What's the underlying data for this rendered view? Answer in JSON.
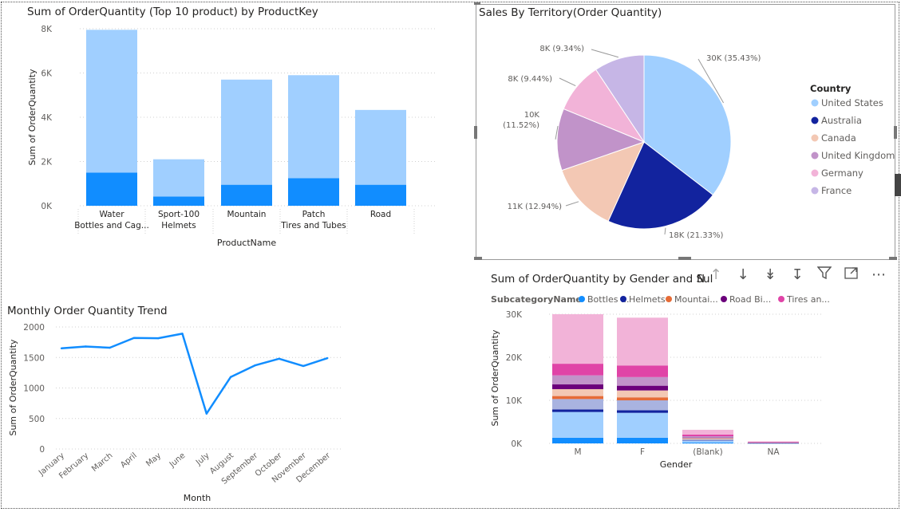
{
  "colors": {
    "light_blue": "#a0cfff",
    "blue": "#118dff",
    "navy": "#12239e",
    "peach": "#f3c8b4",
    "purple": "#c193c9",
    "pink": "#f2b3d8",
    "lavender": "#c6b6e6",
    "line": "#118dff",
    "orange": "#e66c37",
    "dark_purple": "#6b007b",
    "magenta": "#e044a7"
  },
  "header_icons": [
    "arrow-up-icon",
    "arrow-down-icon",
    "double-arrow-down-icon",
    "expand-down-icon",
    "filter-icon",
    "focus-mode-icon",
    "more-options-icon"
  ],
  "chart_data": [
    {
      "type": "bar",
      "title": "Sum of OrderQuantity (Top 10 product) by ProductKey",
      "xlabel": "ProductName",
      "ylabel": "Sum of OrderQuantity",
      "ylim": [
        0,
        8000
      ],
      "yticks": [
        "0K",
        "2K",
        "4K",
        "6K",
        "8K"
      ],
      "categories": [
        [
          "Water",
          "Bottles and Cag..."
        ],
        [
          "Sport-100",
          "Helmets"
        ],
        [
          "Mountain",
          ""
        ],
        [
          "Patch",
          "Tires and Tubes"
        ],
        [
          "Road",
          ""
        ]
      ],
      "series": [
        {
          "values": [
            1500,
            420,
            950,
            1250,
            950
          ]
        },
        {
          "values": [
            6450,
            1680,
            4750,
            4650,
            3380
          ]
        }
      ],
      "grid": true
    },
    {
      "type": "pie",
      "title": "Sales By Territory(Order Quantity)",
      "legend_title": "Country",
      "legend_position": "right",
      "slices": [
        {
          "name": "United States",
          "value": 35.43,
          "label": "30K (35.43%)"
        },
        {
          "name": "Australia",
          "value": 21.33,
          "label": "18K (21.33%)"
        },
        {
          "name": "Canada",
          "value": 12.94,
          "label": "11K (12.94%)"
        },
        {
          "name": "United Kingdom",
          "value": 11.52,
          "label": "10K",
          "label2": "(11.52%)"
        },
        {
          "name": "Germany",
          "value": 9.44,
          "label": "8K (9.44%)"
        },
        {
          "name": "France",
          "value": 9.34,
          "label": "8K (9.34%)"
        }
      ]
    },
    {
      "type": "line",
      "title": "Monthly Order Quantity Trend",
      "xlabel": "Month",
      "ylabel": "Sum of OrderQuantity",
      "ylim": [
        0,
        2000
      ],
      "yticks": [
        "0",
        "500",
        "1000",
        "1500",
        "2000"
      ],
      "x": [
        "January",
        "February",
        "March",
        "April",
        "May",
        "June",
        "July",
        "August",
        "September",
        "October",
        "November",
        "December"
      ],
      "values": [
        1650,
        1680,
        1660,
        1820,
        1815,
        1890,
        580,
        1180,
        1370,
        1480,
        1360,
        1490
      ],
      "grid": true
    },
    {
      "type": "bar",
      "title": "Sum of OrderQuantity by Gender and Sul",
      "title_tail": "N",
      "xlabel": "Gender",
      "ylabel": "Sum of OrderQuantity",
      "ylim": [
        0,
        30000
      ],
      "yticks": [
        "0K",
        "10K",
        "20K",
        "30K"
      ],
      "legend_title": "SubcategoryName",
      "legend": [
        {
          "name": "Bottles ...",
          "color": "#118dff"
        },
        {
          "name": "Helmets",
          "color": "#12239e"
        },
        {
          "name": "Mountai...",
          "color": "#e66c37"
        },
        {
          "name": "Road Bi...",
          "color": "#6b007b"
        },
        {
          "name": "Tires an...",
          "color": "#e044a7"
        }
      ],
      "categories": [
        "M",
        "F",
        "(Blank)",
        "NA"
      ],
      "series": [
        {
          "color": "#118dff",
          "values": [
            1300,
            1300,
            200,
            40
          ]
        },
        {
          "color": "#a0cfff",
          "values": [
            6000,
            5800,
            400,
            60
          ]
        },
        {
          "color": "#12239e",
          "values": [
            600,
            600,
            80,
            10
          ]
        },
        {
          "color": "#a9b3e0",
          "values": [
            2400,
            2300,
            300,
            40
          ]
        },
        {
          "color": "#e66c37",
          "values": [
            700,
            700,
            80,
            10
          ]
        },
        {
          "color": "#f3c8b4",
          "values": [
            1600,
            1600,
            180,
            20
          ]
        },
        {
          "color": "#6b007b",
          "values": [
            1100,
            1100,
            120,
            20
          ]
        },
        {
          "color": "#c193c9",
          "values": [
            2100,
            2000,
            300,
            60
          ]
        },
        {
          "color": "#e044a7",
          "values": [
            2700,
            2700,
            400,
            50
          ]
        },
        {
          "color": "#f2b3d8",
          "values": [
            11500,
            11100,
            1100,
            190
          ]
        }
      ],
      "grid": true
    }
  ]
}
